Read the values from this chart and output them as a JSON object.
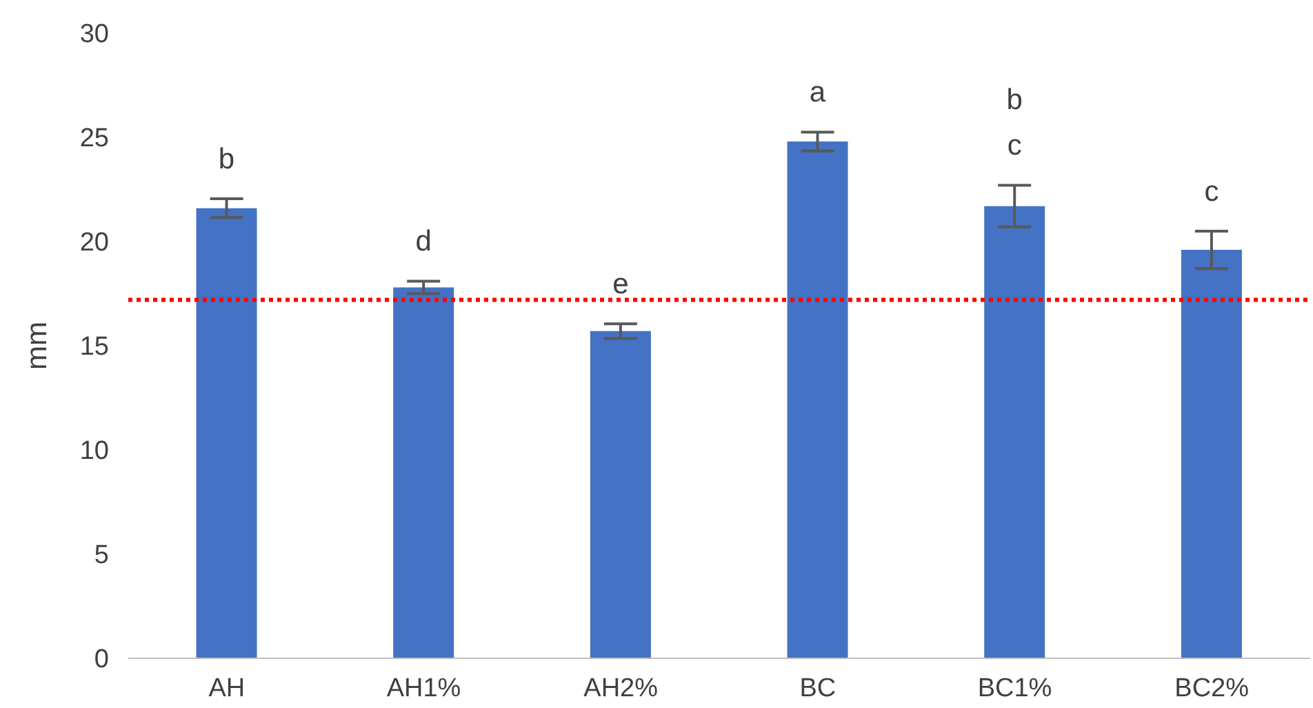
{
  "chart_data": {
    "type": "bar",
    "ylabel": "mm",
    "categories": [
      "AH",
      "AH1%",
      "AH2%",
      "BC",
      "BC1%",
      "BC2%"
    ],
    "series": [
      {
        "color": "#4472c4",
        "values": [
          21.6,
          17.8,
          15.7,
          24.8,
          21.7,
          19.6
        ],
        "errors": [
          0.45,
          0.3,
          0.35,
          0.45,
          1.0,
          0.9
        ],
        "value_labels": [
          "b",
          "d",
          "e",
          "a",
          "b\nc",
          "c"
        ]
      }
    ],
    "ylim": [
      0,
      30
    ],
    "yticks": [
      0,
      5,
      10,
      15,
      20,
      25,
      30
    ],
    "grid": false,
    "legend": false,
    "ref_lines": [
      {
        "axis": "y",
        "value": 17.2,
        "color": "#ff0000",
        "line_style": "dotted"
      }
    ]
  }
}
